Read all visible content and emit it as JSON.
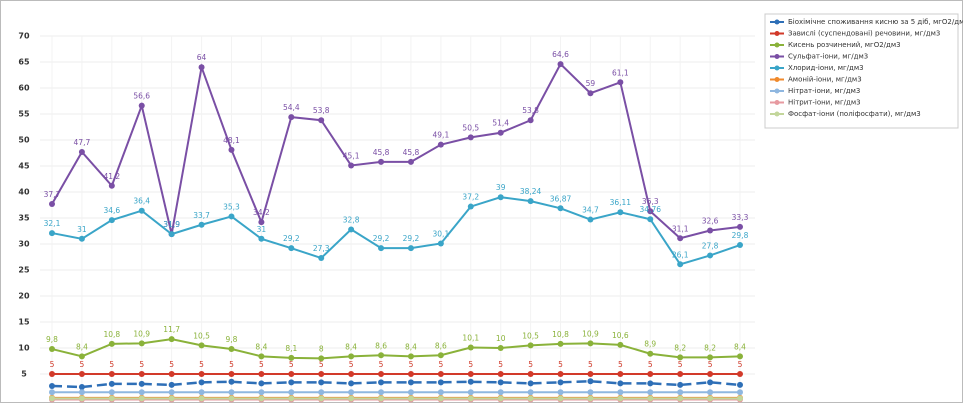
{
  "chart_data": {
    "type": "line",
    "ylim": [
      0,
      70
    ],
    "yticks": [
      5,
      10,
      15,
      20,
      25,
      30,
      35,
      40,
      45,
      50,
      55,
      60,
      65,
      70
    ],
    "grid": true,
    "legend": "right",
    "series": [
      {
        "name": "Біохімічне споживання кисню за 5 діб, мгО2/дм3",
        "color": "#2e6fb7",
        "dashed": true,
        "values": [
          2.7,
          2.5,
          3.1,
          3.1,
          2.9,
          3.4,
          3.5,
          3.2,
          3.4,
          3.4,
          3.2,
          3.4,
          3.4,
          3.4,
          3.5,
          3.4,
          3.2,
          3.4,
          3.6,
          3.2,
          3.2,
          2.9,
          3.4,
          2.9
        ]
      },
      {
        "name": "Завислі (суспендовані) речовини, мг/дм3",
        "color": "#d23a2a",
        "values": [
          5,
          5,
          5,
          5,
          5,
          5,
          5,
          5,
          5,
          5,
          5,
          5,
          5,
          5,
          5,
          5,
          5,
          5,
          5,
          5,
          5,
          5,
          5,
          5
        ],
        "value_labels": [
          "5",
          "5",
          "5",
          "5",
          "5",
          "5",
          "5",
          "5",
          "5",
          "5",
          "5",
          "5",
          "5",
          "5",
          "5",
          "5",
          "5",
          "5",
          "5",
          "5",
          "5",
          "5",
          "5",
          "5"
        ]
      },
      {
        "name": "Кисень розчинений, мгО2/дм3",
        "color": "#8ab23a",
        "values": [
          9.8,
          8.4,
          10.8,
          10.9,
          11.7,
          10.5,
          9.8,
          8.4,
          8.1,
          8,
          8.4,
          8.6,
          8.4,
          8.6,
          10.1,
          10,
          10.5,
          10.8,
          10.9,
          10.6,
          8.9,
          8.2,
          8.2,
          8.4
        ],
        "value_labels": [
          "9,8",
          "8,4",
          "10,8",
          "10,9",
          "11,7",
          "10,5",
          "9,8",
          "8,4",
          "8,1",
          "8",
          "8,4",
          "8,6",
          "8,4",
          "8,6",
          "10,1",
          "10",
          "10,5",
          "10,8",
          "10,9",
          "10,6",
          "8,9",
          "8,2",
          "8,2",
          "8,4"
        ]
      },
      {
        "name": "Сульфат-іони, мг/дм3",
        "color": "#7a4fa5",
        "values": [
          37.7,
          47.7,
          41.2,
          56.6,
          31.9,
          64,
          48.1,
          34.2,
          54.4,
          53.8,
          45.1,
          45.8,
          45.8,
          49.1,
          50.5,
          51.4,
          53.8,
          64.6,
          59,
          61.1,
          36.3,
          31.1,
          32.6,
          33.3
        ],
        "value_labels": [
          "37,7",
          "47,7",
          "41,2",
          "56,6",
          "31,9",
          "64",
          "48,1",
          "34,2",
          "54,4",
          "53,8",
          "45,1",
          "45,8",
          "45,8",
          "49,1",
          "50,5",
          "51,4",
          "53,8",
          "64,6",
          "59",
          "61,1",
          "36,3",
          "31,1",
          "32,6",
          "33,3"
        ]
      },
      {
        "name": "Хлорид-іони, мг/дм3",
        "color": "#3aa5c8",
        "values": [
          32.1,
          31,
          34.6,
          36.4,
          31.9,
          33.7,
          35.3,
          31,
          29.2,
          27.3,
          32.8,
          29.2,
          29.2,
          30.1,
          37.2,
          39,
          38.24,
          36.87,
          34.7,
          36.11,
          34.76,
          26.1,
          27.8,
          29.8
        ],
        "value_labels": [
          "32,1",
          "31",
          "34,6",
          "36,4",
          "31,9",
          "33,7",
          "35,3",
          "31",
          "29,2",
          "27,3",
          "32,8",
          "29,2",
          "29,2",
          "30,1",
          "37,2",
          "39",
          "38,24",
          "36,87",
          "34,7",
          "36,11",
          "34,76",
          "26,1",
          "27,8",
          "29,8"
        ]
      },
      {
        "name": "Амоній-іони, мг/дм3",
        "color": "#f08a2c",
        "values": [
          0.4,
          0.4,
          0.4,
          0.4,
          0.4,
          0.4,
          0.4,
          0.4,
          0.4,
          0.4,
          0.4,
          0.4,
          0.4,
          0.4,
          0.4,
          0.4,
          0.4,
          0.4,
          0.4,
          0.4,
          0.4,
          0.4,
          0.4,
          0.4
        ]
      },
      {
        "name": "Нітрат-іони, мг/дм3",
        "color": "#8fb7e0",
        "values": [
          1.5,
          1.5,
          1.5,
          1.5,
          1.5,
          1.5,
          1.5,
          1.5,
          1.5,
          1.5,
          1.5,
          1.5,
          1.5,
          1.5,
          1.5,
          1.5,
          1.5,
          1.5,
          1.5,
          1.5,
          1.5,
          1.5,
          1.5,
          1.5
        ]
      },
      {
        "name": "Нітрит-іони, мг/дм3",
        "color": "#e79aa0",
        "values": [
          0.1,
          0.1,
          0.1,
          0.1,
          0.1,
          0.1,
          0.1,
          0.1,
          0.1,
          0.1,
          0.1,
          0.1,
          0.1,
          0.1,
          0.1,
          0.1,
          0.1,
          0.1,
          0.1,
          0.1,
          0.1,
          0.1,
          0.1,
          0.1
        ]
      },
      {
        "name": "Фосфат-іони (поліфосфати), мг/дм3",
        "color": "#c3d69b",
        "values": [
          0.3,
          0.3,
          0.3,
          0.3,
          0.3,
          0.3,
          0.3,
          0.3,
          0.3,
          0.3,
          0.3,
          0.3,
          0.3,
          0.3,
          0.3,
          0.3,
          0.3,
          0.3,
          0.3,
          0.3,
          0.3,
          0.3,
          0.3,
          0.3
        ]
      }
    ]
  }
}
